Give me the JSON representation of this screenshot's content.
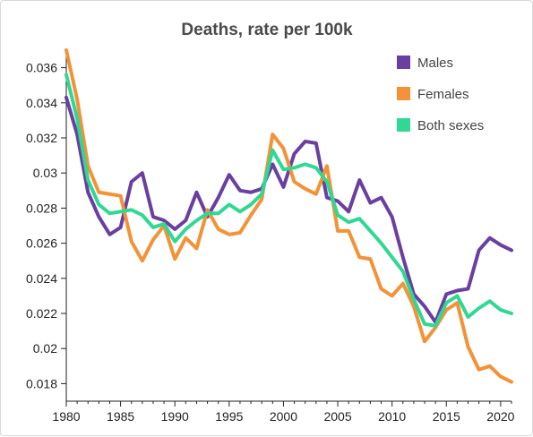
{
  "chart_data": {
    "type": "line",
    "title": "Deaths, rate per 100k",
    "xlabel": "",
    "ylabel": "",
    "xlim": [
      1980,
      2021
    ],
    "ylim": [
      0.017,
      0.037
    ],
    "grid": false,
    "legend_position": "top-right",
    "x_ticks": [
      1980,
      1985,
      1990,
      1995,
      2000,
      2005,
      2010,
      2015,
      2020
    ],
    "y_ticks": [
      0.018,
      0.02,
      0.022,
      0.024,
      0.026,
      0.028,
      0.03,
      0.032,
      0.034,
      0.036
    ],
    "x": [
      1980,
      1981,
      1982,
      1983,
      1984,
      1985,
      1986,
      1987,
      1988,
      1989,
      1990,
      1991,
      1992,
      1993,
      1994,
      1995,
      1996,
      1997,
      1998,
      1999,
      2000,
      2001,
      2002,
      2003,
      2004,
      2005,
      2006,
      2007,
      2008,
      2009,
      2010,
      2011,
      2012,
      2013,
      2014,
      2015,
      2016,
      2017,
      2018,
      2019,
      2020,
      2021
    ],
    "series": [
      {
        "name": "Males",
        "color": "#6a3fa0",
        "values": [
          0.0343,
          0.0322,
          0.0289,
          0.0275,
          0.0265,
          0.0269,
          0.0295,
          0.03,
          0.0275,
          0.0273,
          0.0268,
          0.0273,
          0.0289,
          0.0275,
          0.0286,
          0.0299,
          0.029,
          0.0289,
          0.0291,
          0.0305,
          0.0292,
          0.0311,
          0.0318,
          0.0317,
          0.0286,
          0.0284,
          0.0278,
          0.0296,
          0.0283,
          0.0286,
          0.0275,
          0.0252,
          0.0231,
          0.0224,
          0.0215,
          0.0231,
          0.0233,
          0.0234,
          0.0256,
          0.0263,
          0.0259,
          0.0256
        ]
      },
      {
        "name": "Females",
        "color": "#f39237",
        "values": [
          0.037,
          0.0342,
          0.0304,
          0.0289,
          0.0288,
          0.0287,
          0.0261,
          0.025,
          0.0262,
          0.027,
          0.0251,
          0.0263,
          0.0257,
          0.0279,
          0.0268,
          0.0265,
          0.0266,
          0.0276,
          0.0285,
          0.0322,
          0.0314,
          0.0295,
          0.0291,
          0.0288,
          0.0304,
          0.0267,
          0.0267,
          0.0252,
          0.0251,
          0.0234,
          0.023,
          0.0237,
          0.0224,
          0.0204,
          0.0212,
          0.0222,
          0.0226,
          0.0201,
          0.0188,
          0.019,
          0.0184,
          0.0181
        ]
      },
      {
        "name": "Both sexes",
        "color": "#2fd893",
        "values": [
          0.0356,
          0.0331,
          0.0296,
          0.0282,
          0.0277,
          0.0278,
          0.0279,
          0.0276,
          0.0269,
          0.0271,
          0.0261,
          0.0268,
          0.0273,
          0.0277,
          0.0277,
          0.0282,
          0.0278,
          0.0282,
          0.0288,
          0.0313,
          0.0302,
          0.0303,
          0.0305,
          0.0303,
          0.0295,
          0.0276,
          0.0272,
          0.0274,
          0.0267,
          0.026,
          0.0252,
          0.0244,
          0.0228,
          0.0214,
          0.0213,
          0.0226,
          0.023,
          0.0218,
          0.0223,
          0.0227,
          0.0222,
          0.022
        ]
      }
    ]
  }
}
